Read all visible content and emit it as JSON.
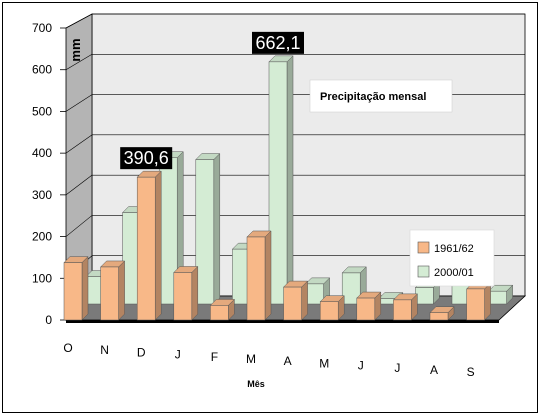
{
  "chart_data": {
    "type": "bar",
    "title": "Precipitação mensal",
    "xlabel": "Mês",
    "ylabel": "mm",
    "ylim": [
      0,
      700
    ],
    "yticks": [
      "0",
      "100",
      "200",
      "300",
      "400",
      "500",
      "600",
      "700"
    ],
    "categories": [
      "O",
      "N",
      "D",
      "J",
      "F",
      "M",
      "A",
      "M",
      "J",
      "J",
      "A",
      "S"
    ],
    "series": [
      {
        "name": "1961/62",
        "color": "#f8b888",
        "values": [
          157,
          145,
          390.6,
          130,
          40,
          227,
          90,
          50,
          60,
          55,
          20,
          85
        ]
      },
      {
        "name": "2000/01",
        "color": "#d4ecd4",
        "values": [
          75,
          250,
          400,
          395,
          150,
          662.1,
          55,
          85,
          15,
          45,
          50,
          35
        ]
      }
    ],
    "annotations": [
      {
        "text": "390,6",
        "series": "1961/62",
        "category_index": 2
      },
      {
        "text": "662,1",
        "series": "2000/01",
        "category_index": 5
      }
    ],
    "grid": true,
    "legend_position": "right"
  }
}
